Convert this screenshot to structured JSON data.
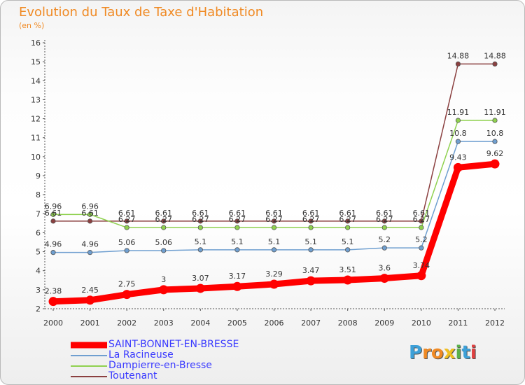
{
  "header": {
    "title": "Evolution du Taux de Taxe d'Habitation",
    "subtitle": "(en %)"
  },
  "chart_data": {
    "type": "line",
    "title": "Evolution du Taux de Taxe d'Habitation",
    "ylabel": "(en %)",
    "xlabel": "",
    "categories": [
      "2000",
      "2001",
      "2002",
      "2003",
      "2004",
      "2005",
      "2006",
      "2007",
      "2008",
      "2009",
      "2010",
      "2011",
      "2012"
    ],
    "ylim": [
      2,
      16
    ],
    "yticks": [
      2,
      3,
      4,
      5,
      6,
      7,
      8,
      9,
      10,
      11,
      12,
      13,
      14,
      15,
      16
    ],
    "grid": false,
    "series": [
      {
        "name": "Toutenant",
        "color": "#8b4040",
        "values": [
          6.61,
          6.61,
          6.61,
          6.61,
          6.61,
          6.61,
          6.61,
          6.61,
          6.61,
          6.61,
          6.61,
          14.88,
          14.88
        ],
        "labels": [
          "6.61",
          "6.61",
          "6.61",
          "6.61",
          "6.61",
          "6.61",
          "6.61",
          "6.61",
          "6.61",
          "6.61",
          "6.61",
          "14.88",
          "14.88"
        ]
      },
      {
        "name": "Dampierre-en-Bresse",
        "color": "#8fd14f",
        "values": [
          6.96,
          6.96,
          6.27,
          6.27,
          6.27,
          6.27,
          6.27,
          6.27,
          6.27,
          6.27,
          6.27,
          11.91,
          11.91
        ],
        "labels": [
          "6.96",
          "6.96",
          "6.27",
          "6.27",
          "6.27",
          "6.27",
          "6.27",
          "6.27",
          "6.27",
          "6.27",
          "6.27",
          "11.91",
          "11.91"
        ]
      },
      {
        "name": "La Racineuse",
        "color": "#6f9fd0",
        "values": [
          4.96,
          4.96,
          5.06,
          5.06,
          5.1,
          5.1,
          5.1,
          5.1,
          5.1,
          5.2,
          5.2,
          10.8,
          10.8
        ],
        "labels": [
          "4.96",
          "4.96",
          "5.06",
          "5.06",
          "5.1",
          "5.1",
          "5.1",
          "5.1",
          "5.1",
          "5.2",
          "5.2",
          "10.8",
          "10.8"
        ]
      },
      {
        "name": "SAINT-BONNET-EN-BRESSE",
        "color": "#ff0000",
        "values": [
          2.38,
          2.45,
          2.75,
          3,
          3.07,
          3.17,
          3.29,
          3.47,
          3.51,
          3.6,
          3.74,
          9.43,
          9.62
        ],
        "labels": [
          "2.38",
          "2.45",
          "2.75",
          "3",
          "3.07",
          "3.17",
          "3.29",
          "3.47",
          "3.51",
          "3.6",
          "3.74",
          "9.43",
          "9.62"
        ]
      }
    ],
    "legend": {
      "placement": "bottom-left",
      "items": [
        {
          "name": "SAINT-BONNET-EN-BRESSE",
          "color": "#ff0000",
          "text_color": "#3a3aff"
        },
        {
          "name": "La Racineuse",
          "color": "#6f9fd0",
          "text_color": "#3a3aff"
        },
        {
          "name": "Dampierre-en-Bresse",
          "color": "#8fd14f",
          "text_color": "#3a3aff"
        },
        {
          "name": "Toutenant",
          "color": "#8b4040",
          "text_color": "#3a3aff"
        }
      ]
    }
  },
  "logo": {
    "text": "Proxiti",
    "letters": [
      {
        "ch": "P",
        "color": "#3da0d8"
      },
      {
        "ch": "r",
        "color": "#f08a24"
      },
      {
        "ch": "o",
        "color": "#f08a24"
      },
      {
        "ch": "x",
        "color": "#f0c020"
      },
      {
        "ch": "i",
        "color": "#5ab04a"
      },
      {
        "ch": "t",
        "color": "#3da0d8"
      },
      {
        "ch": "i",
        "color": "#e04040"
      }
    ]
  }
}
